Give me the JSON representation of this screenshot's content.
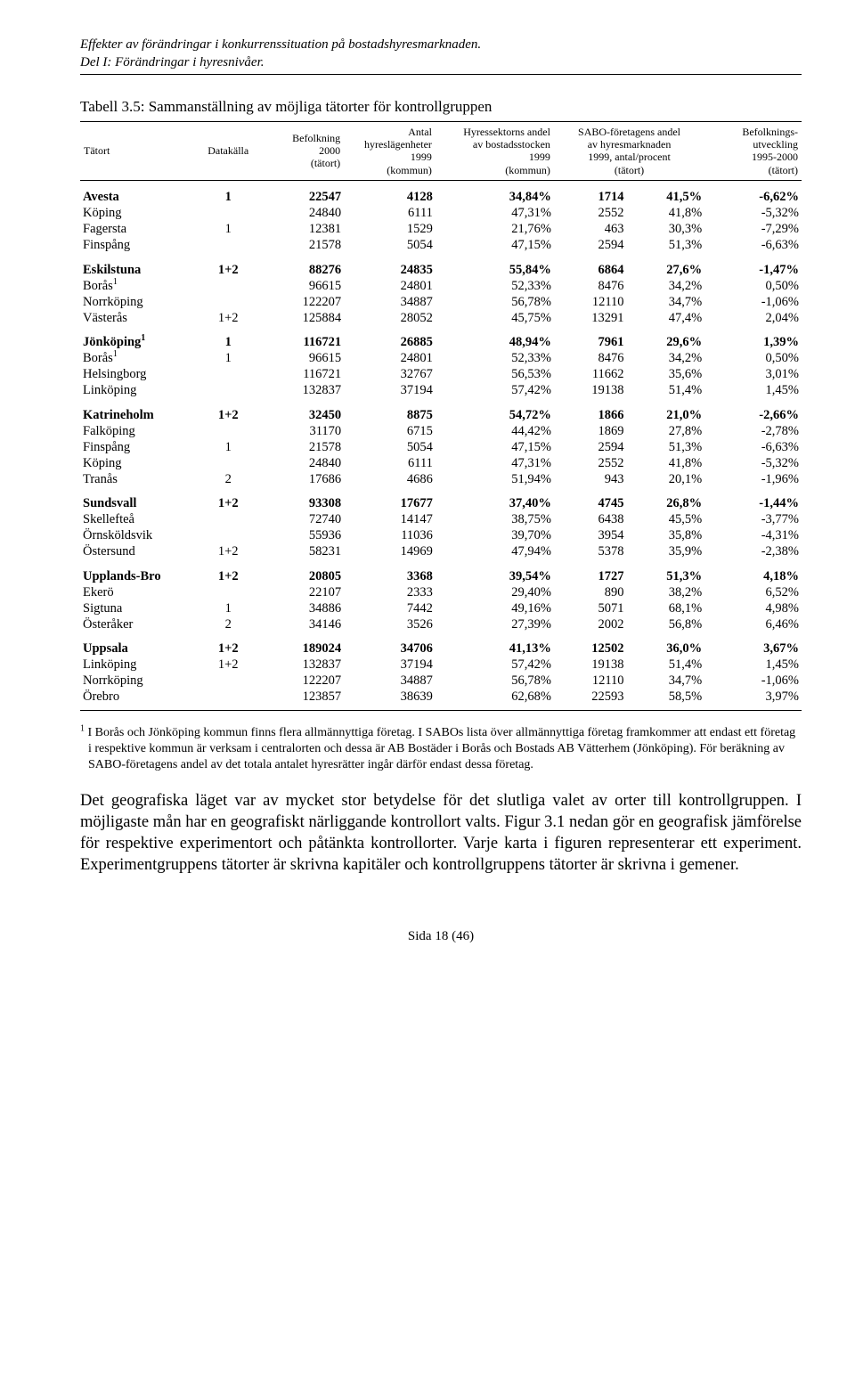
{
  "header": {
    "line1": "Effekter av förändringar i konkurrenssituation på bostadshyresmarknaden.",
    "line2": "Del I: Förändringar i hyresnivåer."
  },
  "caption": "Tabell 3.5: Sammanställning av möjliga tätorter för kontrollgruppen",
  "columns": {
    "tatort": "Tätort",
    "datakalla": "Datakälla",
    "befolkning": "Befolkning\n2000\n(tätort)",
    "antal": "Antal\nhyreslägenheter\n1999\n(kommun)",
    "hyressektor": "Hyressektorns andel\nav bostadsstocken\n1999\n(kommun)",
    "sabo": "SABO-företagens andel\nav hyresmarknaden\n1999, antal/procent\n(tätort)",
    "utveckling": "Befolknings-\nutveckling\n1995-2000\n(tätort)"
  },
  "groups": [
    [
      {
        "tatort": "Avesta",
        "sup": "",
        "data": "1",
        "bef": "22547",
        "antal": "4128",
        "hyress": "34,84%",
        "sabo_n": "1714",
        "sabo_p": "41,5%",
        "utv": "-6,62%",
        "bold": true
      },
      {
        "tatort": "Köping",
        "sup": "",
        "data": "",
        "bef": "24840",
        "antal": "6111",
        "hyress": "47,31%",
        "sabo_n": "2552",
        "sabo_p": "41,8%",
        "utv": "-5,32%",
        "bold": false
      },
      {
        "tatort": "Fagersta",
        "sup": "",
        "data": "1",
        "bef": "12381",
        "antal": "1529",
        "hyress": "21,76%",
        "sabo_n": "463",
        "sabo_p": "30,3%",
        "utv": "-7,29%",
        "bold": false
      },
      {
        "tatort": "Finspång",
        "sup": "",
        "data": "",
        "bef": "21578",
        "antal": "5054",
        "hyress": "47,15%",
        "sabo_n": "2594",
        "sabo_p": "51,3%",
        "utv": "-6,63%",
        "bold": false
      }
    ],
    [
      {
        "tatort": "Eskilstuna",
        "sup": "",
        "data": "1+2",
        "bef": "88276",
        "antal": "24835",
        "hyress": "55,84%",
        "sabo_n": "6864",
        "sabo_p": "27,6%",
        "utv": "-1,47%",
        "bold": true
      },
      {
        "tatort": "Borås",
        "sup": "1",
        "data": "",
        "bef": "96615",
        "antal": "24801",
        "hyress": "52,33%",
        "sabo_n": "8476",
        "sabo_p": "34,2%",
        "utv": "0,50%",
        "bold": false
      },
      {
        "tatort": "Norrköping",
        "sup": "",
        "data": "",
        "bef": "122207",
        "antal": "34887",
        "hyress": "56,78%",
        "sabo_n": "12110",
        "sabo_p": "34,7%",
        "utv": "-1,06%",
        "bold": false
      },
      {
        "tatort": "Västerås",
        "sup": "",
        "data": "1+2",
        "bef": "125884",
        "antal": "28052",
        "hyress": "45,75%",
        "sabo_n": "13291",
        "sabo_p": "47,4%",
        "utv": "2,04%",
        "bold": false
      }
    ],
    [
      {
        "tatort": "Jönköping",
        "sup": "1",
        "data": "1",
        "bef": "116721",
        "antal": "26885",
        "hyress": "48,94%",
        "sabo_n": "7961",
        "sabo_p": "29,6%",
        "utv": "1,39%",
        "bold": true
      },
      {
        "tatort": "Borås",
        "sup": "1",
        "data": "1",
        "bef": "96615",
        "antal": "24801",
        "hyress": "52,33%",
        "sabo_n": "8476",
        "sabo_p": "34,2%",
        "utv": "0,50%",
        "bold": false
      },
      {
        "tatort": "Helsingborg",
        "sup": "",
        "data": "",
        "bef": "116721",
        "antal": "32767",
        "hyress": "56,53%",
        "sabo_n": "11662",
        "sabo_p": "35,6%",
        "utv": "3,01%",
        "bold": false
      },
      {
        "tatort": "Linköping",
        "sup": "",
        "data": "",
        "bef": "132837",
        "antal": "37194",
        "hyress": "57,42%",
        "sabo_n": "19138",
        "sabo_p": "51,4%",
        "utv": "1,45%",
        "bold": false
      }
    ],
    [
      {
        "tatort": "Katrineholm",
        "sup": "",
        "data": "1+2",
        "bef": "32450",
        "antal": "8875",
        "hyress": "54,72%",
        "sabo_n": "1866",
        "sabo_p": "21,0%",
        "utv": "-2,66%",
        "bold": true
      },
      {
        "tatort": "Falköping",
        "sup": "",
        "data": "",
        "bef": "31170",
        "antal": "6715",
        "hyress": "44,42%",
        "sabo_n": "1869",
        "sabo_p": "27,8%",
        "utv": "-2,78%",
        "bold": false
      },
      {
        "tatort": "Finspång",
        "sup": "",
        "data": "1",
        "bef": "21578",
        "antal": "5054",
        "hyress": "47,15%",
        "sabo_n": "2594",
        "sabo_p": "51,3%",
        "utv": "-6,63%",
        "bold": false
      },
      {
        "tatort": "Köping",
        "sup": "",
        "data": "",
        "bef": "24840",
        "antal": "6111",
        "hyress": "47,31%",
        "sabo_n": "2552",
        "sabo_p": "41,8%",
        "utv": "-5,32%",
        "bold": false
      },
      {
        "tatort": "Tranås",
        "sup": "",
        "data": "2",
        "bef": "17686",
        "antal": "4686",
        "hyress": "51,94%",
        "sabo_n": "943",
        "sabo_p": "20,1%",
        "utv": "-1,96%",
        "bold": false
      }
    ],
    [
      {
        "tatort": "Sundsvall",
        "sup": "",
        "data": "1+2",
        "bef": "93308",
        "antal": "17677",
        "hyress": "37,40%",
        "sabo_n": "4745",
        "sabo_p": "26,8%",
        "utv": "-1,44%",
        "bold": true
      },
      {
        "tatort": "Skellefteå",
        "sup": "",
        "data": "",
        "bef": "72740",
        "antal": "14147",
        "hyress": "38,75%",
        "sabo_n": "6438",
        "sabo_p": "45,5%",
        "utv": "-3,77%",
        "bold": false
      },
      {
        "tatort": "Örnsköldsvik",
        "sup": "",
        "data": "",
        "bef": "55936",
        "antal": "11036",
        "hyress": "39,70%",
        "sabo_n": "3954",
        "sabo_p": "35,8%",
        "utv": "-4,31%",
        "bold": false
      },
      {
        "tatort": "Östersund",
        "sup": "",
        "data": "1+2",
        "bef": "58231",
        "antal": "14969",
        "hyress": "47,94%",
        "sabo_n": "5378",
        "sabo_p": "35,9%",
        "utv": "-2,38%",
        "bold": false
      }
    ],
    [
      {
        "tatort": "Upplands-Bro",
        "sup": "",
        "data": "1+2",
        "bef": "20805",
        "antal": "3368",
        "hyress": "39,54%",
        "sabo_n": "1727",
        "sabo_p": "51,3%",
        "utv": "4,18%",
        "bold": true
      },
      {
        "tatort": "Ekerö",
        "sup": "",
        "data": "",
        "bef": "22107",
        "antal": "2333",
        "hyress": "29,40%",
        "sabo_n": "890",
        "sabo_p": "38,2%",
        "utv": "6,52%",
        "bold": false
      },
      {
        "tatort": "Sigtuna",
        "sup": "",
        "data": "1",
        "bef": "34886",
        "antal": "7442",
        "hyress": "49,16%",
        "sabo_n": "5071",
        "sabo_p": "68,1%",
        "utv": "4,98%",
        "bold": false
      },
      {
        "tatort": "Österåker",
        "sup": "",
        "data": "2",
        "bef": "34146",
        "antal": "3526",
        "hyress": "27,39%",
        "sabo_n": "2002",
        "sabo_p": "56,8%",
        "utv": "6,46%",
        "bold": false
      }
    ],
    [
      {
        "tatort": "Uppsala",
        "sup": "",
        "data": "1+2",
        "bef": "189024",
        "antal": "34706",
        "hyress": "41,13%",
        "sabo_n": "12502",
        "sabo_p": "36,0%",
        "utv": "3,67%",
        "bold": true
      },
      {
        "tatort": "Linköping",
        "sup": "",
        "data": "1+2",
        "bef": "132837",
        "antal": "37194",
        "hyress": "57,42%",
        "sabo_n": "19138",
        "sabo_p": "51,4%",
        "utv": "1,45%",
        "bold": false
      },
      {
        "tatort": "Norrköping",
        "sup": "",
        "data": "",
        "bef": "122207",
        "antal": "34887",
        "hyress": "56,78%",
        "sabo_n": "12110",
        "sabo_p": "34,7%",
        "utv": "-1,06%",
        "bold": false
      },
      {
        "tatort": "Örebro",
        "sup": "",
        "data": "",
        "bef": "123857",
        "antal": "38639",
        "hyress": "62,68%",
        "sabo_n": "22593",
        "sabo_p": "58,5%",
        "utv": "3,97%",
        "bold": false
      }
    ]
  ],
  "footnote": "1 I Borås och Jönköping kommun finns flera allmännyttiga företag. I SABOs lista över allmännyttiga företag framkommer att endast ett företag i respektive kommun är verksam i centralorten och dessa är AB Bostäder i Borås och Bostads AB Vätterhem (Jönköping). För beräkning av SABO-företagens andel av det totala antalet hyresrätter ingår därför endast dessa företag.",
  "body_para": "Det geografiska läget var av mycket stor betydelse för det slutliga valet av orter till kontrollgruppen. I möjligaste mån har en geografiskt närliggande kontrollort valts. Figur 3.1 nedan gör en geografisk jämförelse för respektive experimentort och påtänkta kontrollorter. Varje karta i figuren representerar ett experiment. Experimentgruppens tätorter är skrivna kapitäler och kontrollgruppens tätorter är skrivna i gemener.",
  "footer": "Sida 18 (46)"
}
